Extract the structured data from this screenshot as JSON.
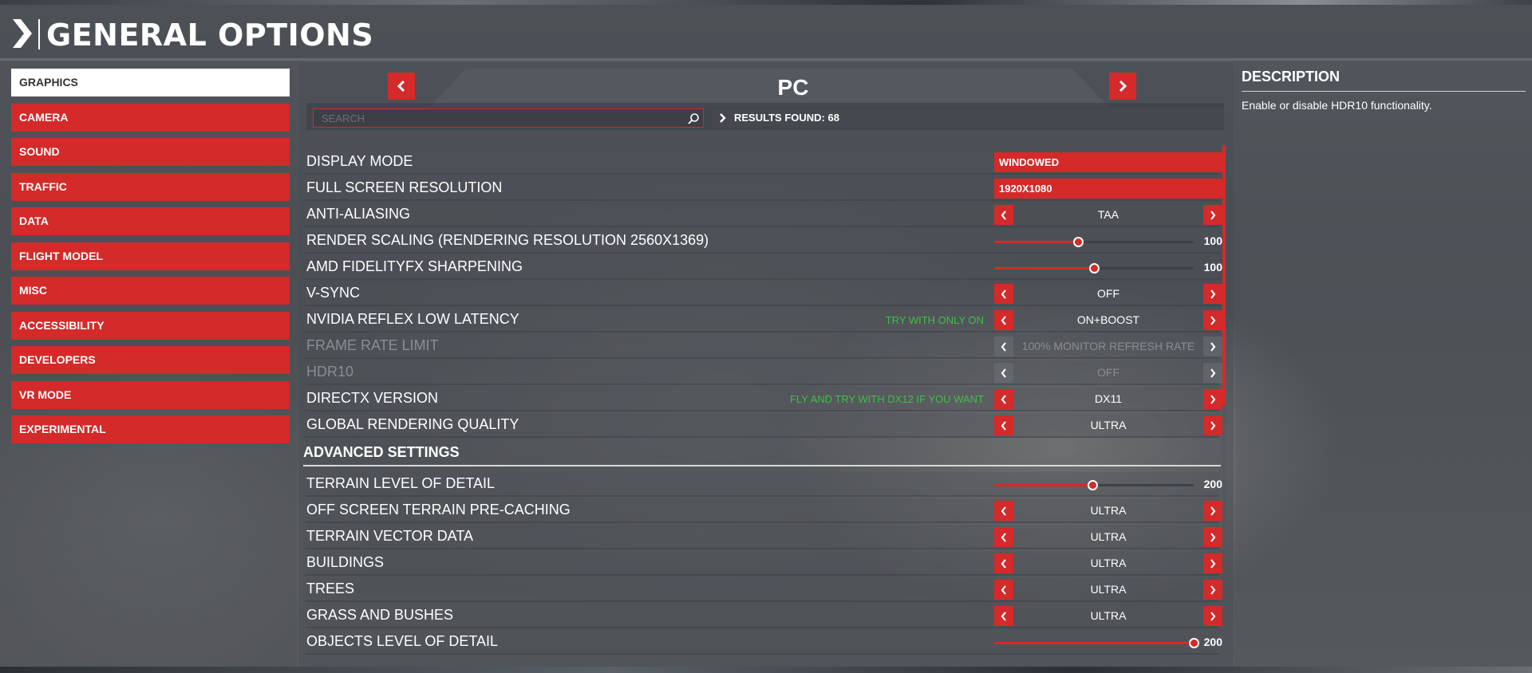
{
  "header": {
    "title": "GENERAL OPTIONS"
  },
  "nav": {
    "items": [
      {
        "label": "GRAPHICS",
        "active": true
      },
      {
        "label": "CAMERA"
      },
      {
        "label": "SOUND"
      },
      {
        "label": "TRAFFIC"
      },
      {
        "label": "DATA"
      },
      {
        "label": "FLIGHT MODEL"
      },
      {
        "label": "MISC"
      },
      {
        "label": "ACCESSIBILITY"
      },
      {
        "label": "DEVELOPERS"
      },
      {
        "label": "VR MODE"
      },
      {
        "label": "EXPERIMENTAL"
      }
    ]
  },
  "platform": {
    "title": "PC"
  },
  "search": {
    "placeholder": "SEARCH",
    "results_label": "RESULTS FOUND: 68"
  },
  "settings": [
    {
      "label": "DISPLAY MODE",
      "type": "dropdown",
      "value": "WINDOWED"
    },
    {
      "label": "FULL SCREEN RESOLUTION",
      "type": "dropdown",
      "value": "1920X1080"
    },
    {
      "label": "ANTI-ALIASING",
      "type": "cycler",
      "value": "TAA"
    },
    {
      "label": "RENDER SCALING (RENDERING RESOLUTION 2560X1369)",
      "type": "slider",
      "value": "100",
      "fill": 0.42
    },
    {
      "label": "AMD FIDELITYFX SHARPENING",
      "type": "slider",
      "value": "100",
      "fill": 0.5
    },
    {
      "label": "V-SYNC",
      "type": "cycler",
      "value": "OFF"
    },
    {
      "label": "NVIDIA REFLEX LOW LATENCY",
      "type": "cycler",
      "value": "ON+BOOST",
      "note": "TRY WITH ONLY ON"
    },
    {
      "label": "FRAME RATE LIMIT",
      "type": "cycler",
      "value": "100% MONITOR REFRESH RATE",
      "disabled": true
    },
    {
      "label": "HDR10",
      "type": "cycler",
      "value": "OFF",
      "disabled": true
    },
    {
      "label": "DIRECTX VERSION",
      "type": "cycler",
      "value": "DX11",
      "note": "FLY AND TRY WITH DX12 IF YOU WANT"
    },
    {
      "label": "GLOBAL RENDERING QUALITY",
      "type": "cycler",
      "value": "ULTRA"
    }
  ],
  "advanced": {
    "title": "ADVANCED SETTINGS",
    "settings": [
      {
        "label": "TERRAIN LEVEL OF DETAIL",
        "type": "slider",
        "value": "200",
        "fill": 0.49
      },
      {
        "label": "OFF SCREEN TERRAIN PRE-CACHING",
        "type": "cycler",
        "value": "ULTRA"
      },
      {
        "label": "TERRAIN VECTOR DATA",
        "type": "cycler",
        "value": "ULTRA"
      },
      {
        "label": "BUILDINGS",
        "type": "cycler",
        "value": "ULTRA"
      },
      {
        "label": "TREES",
        "type": "cycler",
        "value": "ULTRA"
      },
      {
        "label": "GRASS AND BUSHES",
        "type": "cycler",
        "value": "ULTRA"
      },
      {
        "label": "OBJECTS LEVEL OF DETAIL",
        "type": "slider",
        "value": "200",
        "fill": 1.0
      }
    ]
  },
  "description": {
    "title": "DESCRIPTION",
    "text": "Enable or disable HDR10 functionality."
  },
  "colors": {
    "accent": "#d42a2a",
    "note": "#3fbf4a"
  }
}
